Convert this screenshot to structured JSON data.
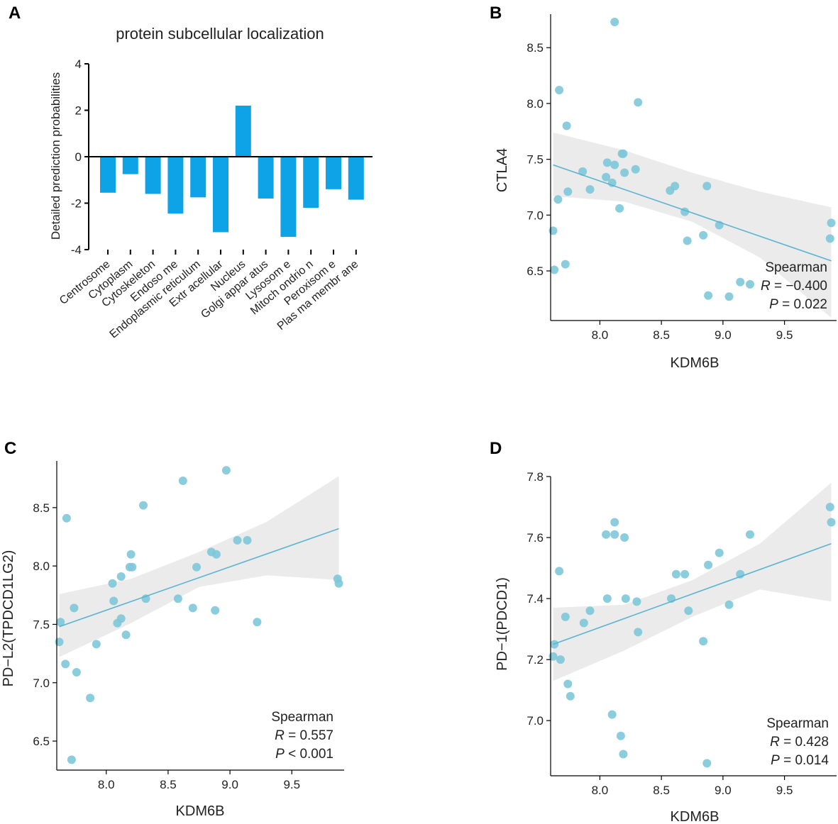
{
  "chart_data": [
    {
      "panel": "A",
      "type": "bar",
      "title": "protein subcellular localization",
      "xlabel": "",
      "ylabel": "Detailed prediction probabilities",
      "ylim": [
        -4,
        4
      ],
      "yticks": [
        -4,
        -2,
        0,
        2,
        4
      ],
      "categories": [
        "Centrosome",
        "Cytoplasm",
        "Cytoskeleton",
        "Endosome",
        "Endoplasmic reticulum",
        "Extracellular",
        "Nucleus",
        "Golgi apparatus",
        "Lysosome",
        "Mitochondrion",
        "Peroxisome",
        "Plasma membrane"
      ],
      "category_labels": [
        "Centrosome",
        "Cytoplasm",
        "Cytoskeleton",
        "Endoso me",
        "Endoplasmic reticulum",
        "Extr acellular",
        "Nucleus",
        "Golgi appar atus",
        "Lysosom e",
        "Mitoch ondrio n",
        "Peroxisom e",
        "Plas ma membr ane"
      ],
      "values": [
        -1.55,
        -0.75,
        -1.6,
        -2.45,
        -1.75,
        -3.25,
        2.2,
        -1.8,
        -3.45,
        -2.2,
        -1.4,
        -1.85
      ],
      "color": "#0ea3e6"
    },
    {
      "panel": "B",
      "type": "scatter",
      "xlabel": "KDM6B",
      "ylabel": "CTLA4",
      "xlim": [
        7.6,
        9.9
      ],
      "ylim": [
        6.1,
        8.8
      ],
      "xticks": [
        8.0,
        8.5,
        9.0,
        9.5
      ],
      "yticks": [
        6.5,
        7.0,
        7.5,
        8.0,
        8.5
      ],
      "x": [
        7.62,
        7.63,
        7.66,
        7.67,
        7.72,
        7.73,
        7.74,
        7.86,
        7.92,
        8.05,
        8.06,
        8.1,
        8.12,
        8.12,
        8.16,
        8.18,
        8.19,
        8.2,
        8.29,
        8.31,
        8.57,
        8.61,
        8.69,
        8.71,
        8.84,
        8.87,
        8.88,
        8.97,
        9.05,
        9.14,
        9.22,
        9.87,
        9.88
      ],
      "y": [
        6.86,
        6.51,
        7.14,
        8.12,
        6.56,
        7.8,
        7.21,
        7.39,
        7.23,
        7.34,
        7.47,
        7.29,
        7.45,
        8.73,
        7.06,
        7.55,
        7.55,
        7.38,
        7.41,
        8.01,
        7.22,
        7.26,
        7.03,
        6.77,
        6.82,
        7.26,
        6.28,
        6.91,
        6.27,
        6.4,
        6.38,
        6.79,
        6.93
      ],
      "fit_line": {
        "x": [
          7.62,
          9.88
        ],
        "y": [
          7.45,
          6.59
        ]
      },
      "ci_band": {
        "x": [
          7.62,
          8.2,
          8.75,
          9.3,
          9.88
        ],
        "upper": [
          7.74,
          7.58,
          7.38,
          7.21,
          7.07
        ],
        "lower": [
          7.17,
          7.12,
          6.94,
          6.62,
          6.08
        ]
      },
      "stats": {
        "method": "Spearman",
        "r_label": "R",
        "r_value": "= −0.400",
        "p_label": "P",
        "p_value": "= 0.022"
      },
      "point_color": "#7ec8d8",
      "line_color": "#5ab4d2"
    },
    {
      "panel": "C",
      "type": "scatter",
      "xlabel": "KDM6B",
      "ylabel": "PD−L2(TPDCD1LG2)",
      "xlim": [
        7.6,
        9.9
      ],
      "ylim": [
        6.3,
        8.9
      ],
      "xticks": [
        8.0,
        8.5,
        9.0,
        9.5
      ],
      "yticks": [
        6.5,
        7.0,
        7.5,
        8.0,
        8.5
      ],
      "x": [
        7.62,
        7.63,
        7.67,
        7.68,
        7.72,
        7.74,
        7.76,
        7.87,
        7.92,
        8.05,
        8.06,
        8.09,
        8.12,
        8.12,
        8.16,
        8.19,
        8.2,
        8.21,
        8.3,
        8.32,
        8.58,
        8.62,
        8.7,
        8.73,
        8.85,
        8.88,
        8.89,
        8.97,
        9.06,
        9.14,
        9.22,
        9.87,
        9.88
      ],
      "y": [
        7.35,
        7.52,
        7.16,
        8.41,
        6.34,
        7.64,
        7.09,
        6.87,
        7.33,
        7.85,
        7.7,
        7.51,
        7.55,
        7.91,
        7.41,
        7.99,
        8.1,
        7.99,
        8.52,
        7.72,
        7.72,
        8.73,
        7.64,
        7.99,
        8.12,
        7.62,
        8.1,
        8.82,
        8.22,
        8.22,
        7.52,
        7.89,
        7.85
      ],
      "fit_line": {
        "x": [
          7.62,
          9.88
        ],
        "y": [
          7.48,
          8.32
        ]
      },
      "ci_band": {
        "x": [
          7.62,
          8.2,
          8.75,
          9.3,
          9.88
        ],
        "upper": [
          7.76,
          7.89,
          8.12,
          8.38,
          8.77
        ],
        "lower": [
          7.22,
          7.51,
          7.82,
          7.92,
          7.88
        ]
      },
      "stats": {
        "method": "Spearman",
        "r_label": "R",
        "r_value": "= 0.557",
        "p_label": "P",
        "p_value": "< 0.001"
      },
      "point_color": "#7ec8d8",
      "line_color": "#5ab4d2"
    },
    {
      "panel": "D",
      "type": "scatter",
      "xlabel": "KDM6B",
      "ylabel": "PD−1(PDCD1)",
      "xlim": [
        7.6,
        9.9
      ],
      "ylim": [
        6.84,
        7.8
      ],
      "xticks": [
        8.0,
        8.5,
        9.0,
        9.5
      ],
      "yticks": [
        7.0,
        7.2,
        7.4,
        7.6,
        7.8
      ],
      "x": [
        7.62,
        7.63,
        7.67,
        7.68,
        7.72,
        7.74,
        7.76,
        7.87,
        7.92,
        8.05,
        8.06,
        8.1,
        8.12,
        8.12,
        8.17,
        8.19,
        8.2,
        8.21,
        8.3,
        8.31,
        8.58,
        8.62,
        8.69,
        8.72,
        8.84,
        8.87,
        8.88,
        8.97,
        9.05,
        9.14,
        9.22,
        9.87,
        9.88
      ],
      "y": [
        7.21,
        7.25,
        7.49,
        7.2,
        7.34,
        7.12,
        7.08,
        7.32,
        7.36,
        7.61,
        7.4,
        7.02,
        7.65,
        7.61,
        6.95,
        6.89,
        7.6,
        7.4,
        7.39,
        7.29,
        7.4,
        7.48,
        7.48,
        7.36,
        7.26,
        6.86,
        7.51,
        7.55,
        7.38,
        7.48,
        7.61,
        7.7,
        7.65
      ],
      "fit_line": {
        "x": [
          7.62,
          9.88
        ],
        "y": [
          7.25,
          7.58
        ]
      },
      "ci_band": {
        "x": [
          7.62,
          8.2,
          8.75,
          9.3,
          9.88
        ],
        "upper": [
          7.37,
          7.38,
          7.46,
          7.58,
          7.78
        ],
        "lower": [
          7.13,
          7.23,
          7.34,
          7.43,
          7.39
        ]
      },
      "stats": {
        "method": "Spearman",
        "r_label": "R",
        "r_value": "= 0.428",
        "p_label": "P",
        "p_value": "= 0.014"
      },
      "point_color": "#7ec8d8",
      "line_color": "#5ab4d2"
    }
  ]
}
